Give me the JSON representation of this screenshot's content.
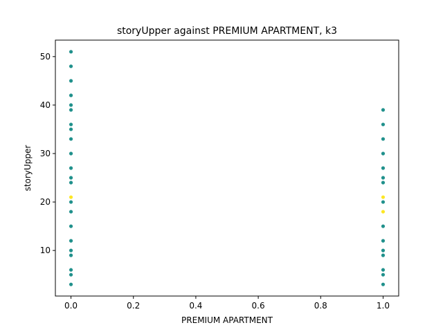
{
  "chart_data": {
    "type": "scatter",
    "title": "storyUpper against PREMIUM APARTMENT, k3",
    "xlabel": "PREMIUM APARTMENT",
    "ylabel": "storyUpper",
    "xlim": [
      -0.05,
      1.05
    ],
    "ylim": [
      0.6,
      53.4
    ],
    "xticks": [
      "0.0",
      "0.2",
      "0.4",
      "0.6",
      "0.8",
      "1.0"
    ],
    "yticks": [
      "10",
      "20",
      "30",
      "40",
      "50"
    ],
    "grid": false,
    "legend": "none",
    "series": [
      {
        "color": "#21918c",
        "points": [
          [
            0,
            51
          ],
          [
            0,
            48
          ],
          [
            0,
            45
          ],
          [
            0,
            42
          ],
          [
            0,
            40
          ],
          [
            0,
            39
          ],
          [
            0,
            36
          ],
          [
            0,
            35
          ],
          [
            0,
            33
          ],
          [
            0,
            30
          ],
          [
            0,
            27
          ],
          [
            0,
            25
          ],
          [
            0,
            24
          ],
          [
            0,
            20
          ],
          [
            0,
            18
          ],
          [
            0,
            15
          ],
          [
            0,
            12
          ],
          [
            0,
            10
          ],
          [
            0,
            9
          ],
          [
            0,
            6
          ],
          [
            0,
            5
          ],
          [
            0,
            3
          ],
          [
            1,
            39
          ],
          [
            1,
            36
          ],
          [
            1,
            33
          ],
          [
            1,
            30
          ],
          [
            1,
            27
          ],
          [
            1,
            25
          ],
          [
            1,
            24
          ],
          [
            1,
            20
          ],
          [
            1,
            15
          ],
          [
            1,
            12
          ],
          [
            1,
            10
          ],
          [
            1,
            9
          ],
          [
            1,
            6
          ],
          [
            1,
            5
          ],
          [
            1,
            3
          ]
        ]
      },
      {
        "color": "#fde725",
        "points": [
          [
            0,
            21
          ],
          [
            1,
            21
          ],
          [
            1,
            18
          ]
        ]
      }
    ]
  }
}
